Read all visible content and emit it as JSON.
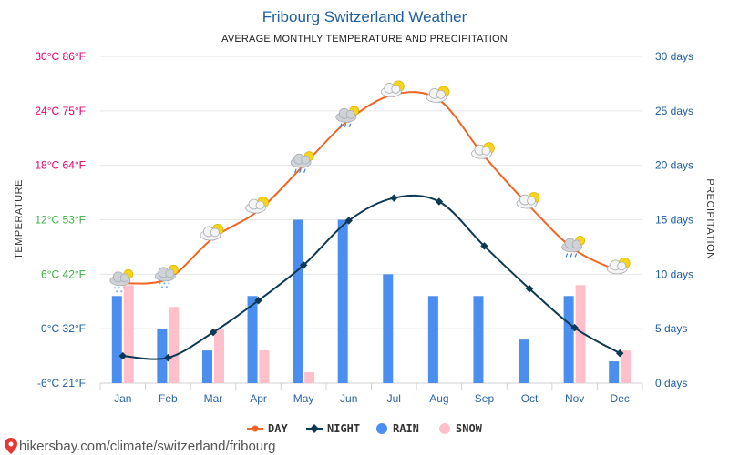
{
  "title": "Fribourg Switzerland Weather",
  "subtitle": "AVERAGE MONTHLY TEMPERATURE AND PRECIPITATION",
  "source": "hikersbay.com/climate/switzerland/fribourg",
  "colors": {
    "day": "#f26522",
    "night": "#0b3954",
    "rain": "#4a8ff0",
    "snow": "#ffc0cb",
    "title": "#1f5fa0",
    "right_axis": "#1f5fa0"
  },
  "chart_data": {
    "type": "line",
    "title": "Fribourg Switzerland Weather",
    "subtitle": "AVERAGE MONTHLY TEMPERATURE AND PRECIPITATION",
    "categories": [
      "Jan",
      "Feb",
      "Mar",
      "Apr",
      "May",
      "Jun",
      "Jul",
      "Aug",
      "Sep",
      "Oct",
      "Nov",
      "Dec"
    ],
    "left_axis": {
      "label": "TEMPERATURE",
      "range": [
        -6,
        30
      ],
      "ticks": [
        {
          "value": 30,
          "label": "30°C 86°F",
          "color": "#e8006f"
        },
        {
          "value": 24,
          "label": "24°C 75°F",
          "color": "#e8006f"
        },
        {
          "value": 18,
          "label": "18°C 64°F",
          "color": "#e8006f"
        },
        {
          "value": 12,
          "label": "12°C 53°F",
          "color": "#3cb043"
        },
        {
          "value": 6,
          "label": "6°C 42°F",
          "color": "#3cb043"
        },
        {
          "value": 0,
          "label": "0°C 32°F",
          "color": "#1f5fa0"
        },
        {
          "value": -6,
          "label": "-6°C 21°F",
          "color": "#1f5fa0"
        }
      ]
    },
    "right_axis": {
      "label": "PRECIPITATION",
      "range": [
        0,
        30
      ],
      "ticks": [
        {
          "value": 30,
          "label": "30 days"
        },
        {
          "value": 25,
          "label": "25 days"
        },
        {
          "value": 20,
          "label": "20 days"
        },
        {
          "value": 15,
          "label": "15 days"
        },
        {
          "value": 10,
          "label": "10 days"
        },
        {
          "value": 5,
          "label": "5 days"
        },
        {
          "value": 0,
          "label": "0 days"
        }
      ]
    },
    "series": [
      {
        "name": "DAY",
        "kind": "line",
        "axis": "left",
        "values": [
          5,
          5.5,
          10,
          13,
          18,
          23,
          25.8,
          25.2,
          19,
          13.5,
          8.7,
          6.3
        ]
      },
      {
        "name": "NIGHT",
        "kind": "line",
        "axis": "left",
        "values": [
          -3,
          -3.2,
          -0.4,
          3.1,
          7,
          11.9,
          14.4,
          14,
          9.1,
          4.4,
          0.1,
          -2.7
        ]
      },
      {
        "name": "RAIN",
        "kind": "bar",
        "axis": "right",
        "values": [
          8,
          5,
          3,
          8,
          15,
          15,
          10,
          8,
          8,
          4,
          8,
          2
        ]
      },
      {
        "name": "SNOW",
        "kind": "bar",
        "axis": "right",
        "values": [
          9,
          7,
          5,
          3,
          1,
          0,
          0,
          0,
          0,
          0,
          9,
          3
        ]
      }
    ],
    "weather_icons": [
      "snow-cloud-icon",
      "snow-cloud-icon",
      "sun-cloud-icon",
      "sun-cloud-icon",
      "rain-cloud-icon",
      "rain-cloud-icon",
      "sun-cloud-icon",
      "sun-cloud-icon",
      "sun-cloud-icon",
      "sun-cloud-icon",
      "rain-cloud-icon",
      "sun-cloud-icon"
    ],
    "legend": [
      {
        "name": "DAY",
        "symbol": "line-dot"
      },
      {
        "name": "NIGHT",
        "symbol": "line-diamond"
      },
      {
        "name": "RAIN",
        "symbol": "circle"
      },
      {
        "name": "SNOW",
        "symbol": "circle"
      }
    ],
    "legend_position": "bottom-center",
    "grid": true
  }
}
